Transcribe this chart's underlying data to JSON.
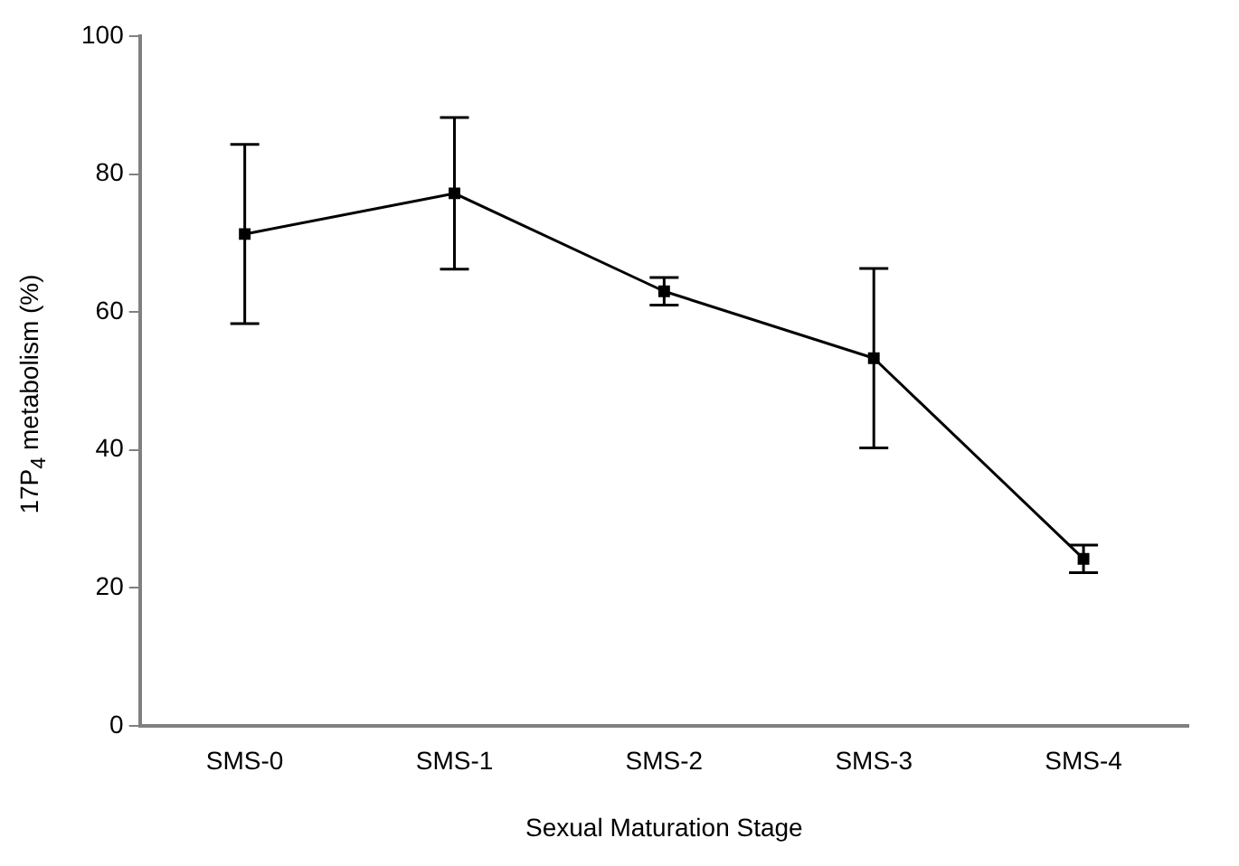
{
  "chart_data": {
    "type": "line",
    "xlabel": "Sexual Maturation Stage",
    "ylabel": "17P$_{4}$ metabolism (%)",
    "categories": [
      "SMS-0",
      "SMS-1",
      "SMS-2",
      "SMS-3",
      "SMS-4"
    ],
    "series": [
      {
        "color": "#000000",
        "values": [
          71.3,
          77.2,
          63,
          53.3,
          24.2
        ],
        "errors": [
          13,
          11,
          2,
          13,
          2
        ]
      }
    ],
    "ylim": [
      0,
      100
    ],
    "yticks": [
      0,
      20,
      40,
      60,
      80,
      100
    ],
    "grid": false,
    "legend": false,
    "marker": "square",
    "line_style": "solid"
  }
}
